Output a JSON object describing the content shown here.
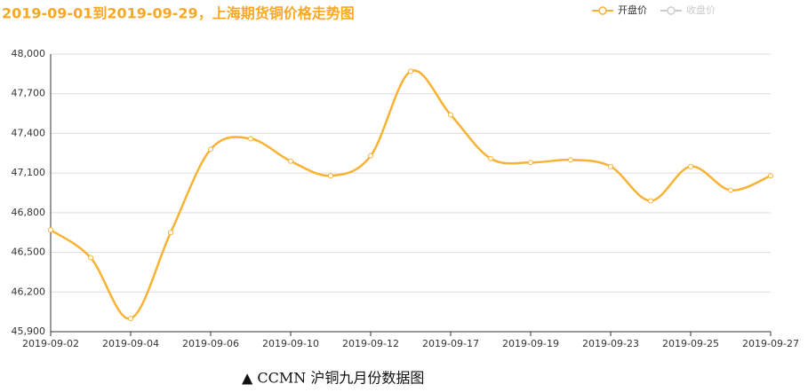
{
  "chart_data": {
    "type": "line",
    "title": "2019-09-01到2019-09-29，上海期货铜价格走势图",
    "caption": "▲ CCMN 沪铜九月份数据图",
    "categories": [
      "2019-09-02",
      null,
      "2019-09-04",
      null,
      "2019-09-06",
      null,
      "2019-09-10",
      null,
      "2019-09-12",
      null,
      "2019-09-17",
      null,
      "2019-09-19",
      null,
      "2019-09-23",
      null,
      "2019-09-25",
      null,
      "2019-09-27"
    ],
    "series": [
      {
        "name": "开盘价",
        "color": "#f9b234",
        "values": [
          46670,
          46460,
          46000,
          46650,
          47280,
          47360,
          47190,
          47080,
          47230,
          47870,
          47540,
          47210,
          47180,
          47200,
          47150,
          46890,
          47150,
          46970,
          47080
        ]
      }
    ],
    "legend": [
      {
        "name": "开盘价",
        "selected": true
      },
      {
        "name": "收盘价",
        "selected": false
      }
    ],
    "smooth": true,
    "ylim": [
      45900,
      48000
    ],
    "yticks": [
      {
        "value": 45900,
        "label": "45,900"
      },
      {
        "value": 46200,
        "label": "46,200"
      },
      {
        "value": 46500,
        "label": "46,500"
      },
      {
        "value": 46800,
        "label": "46,800"
      },
      {
        "value": 47100,
        "label": "47,100"
      },
      {
        "value": 47400,
        "label": "47,400"
      },
      {
        "value": 47700,
        "label": "47,700"
      },
      {
        "value": 48000,
        "label": "48,000"
      }
    ],
    "grid": true
  }
}
